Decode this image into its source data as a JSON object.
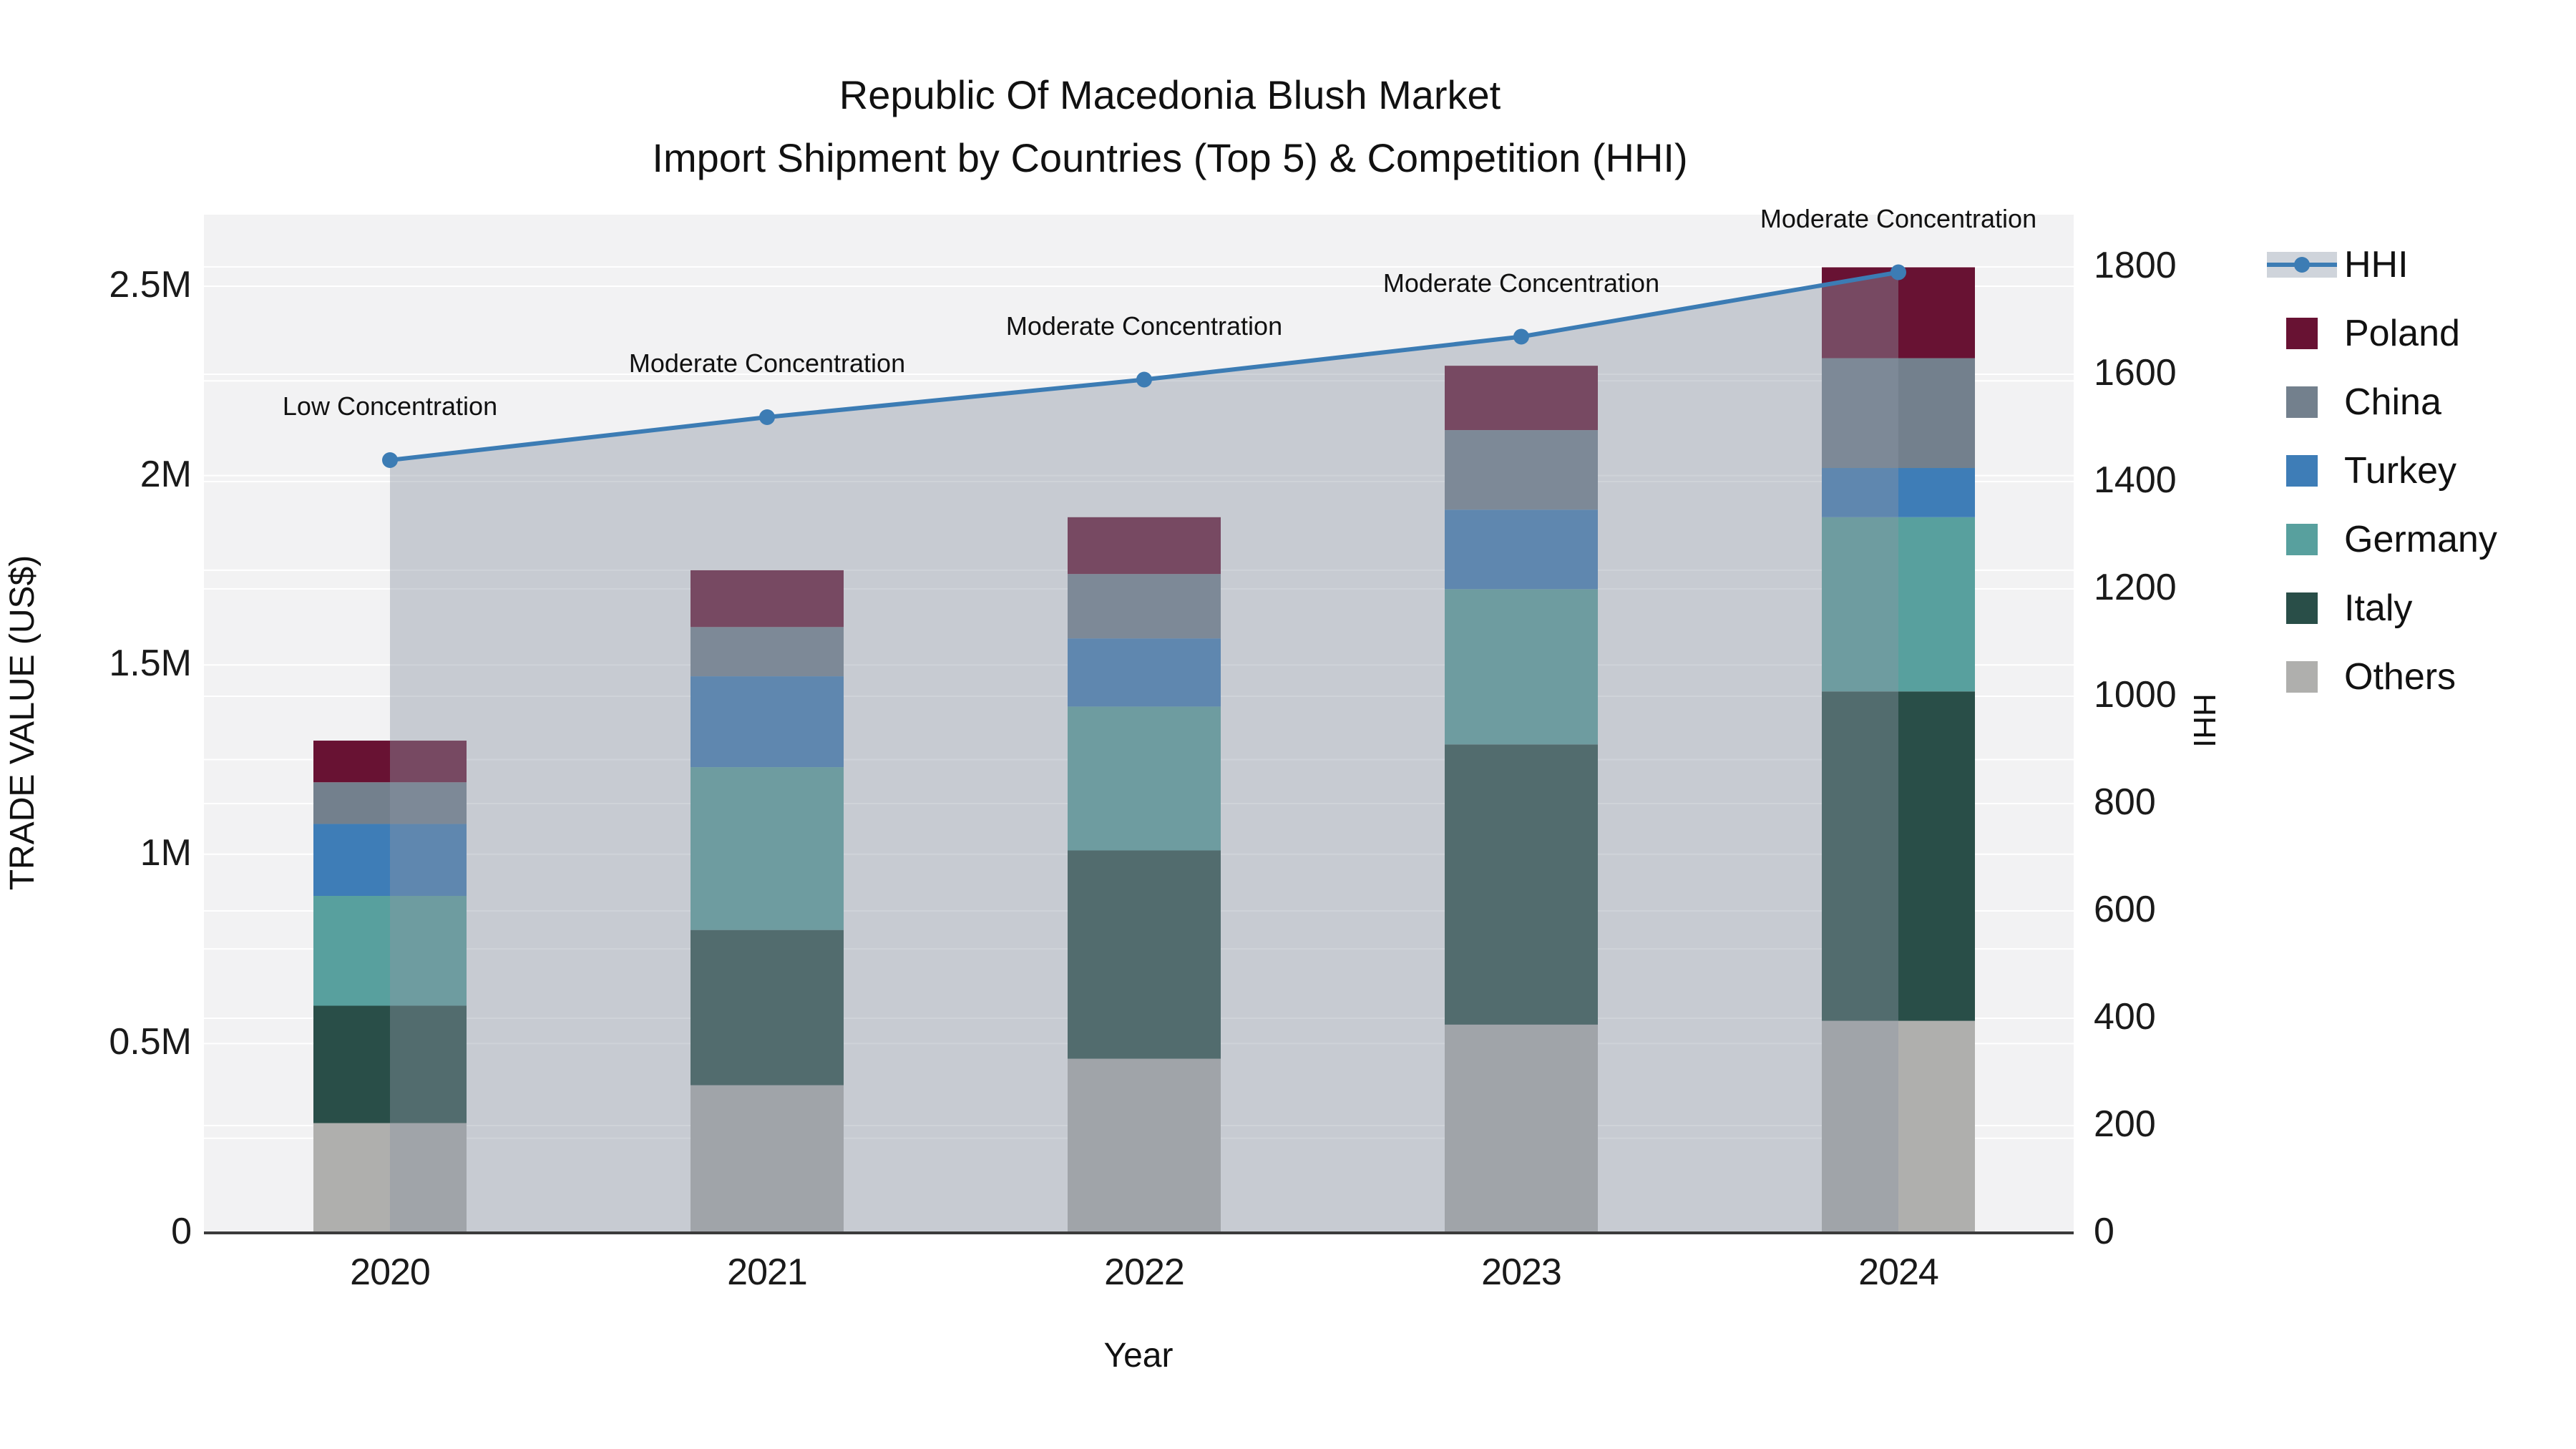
{
  "title": {
    "line1": "Republic Of Macedonia Blush Market",
    "line2": "Import Shipment by Countries (Top 5) & Competition (HHI)"
  },
  "axes": {
    "x": {
      "title": "Year",
      "ticks": [
        "2020",
        "2021",
        "2022",
        "2023",
        "2024"
      ]
    },
    "y_left": {
      "title": "TRADE VALUE (US$)",
      "ticks": [
        "0",
        "0.5M",
        "1M",
        "1.5M",
        "2M",
        "2.5M"
      ],
      "tick_values": [
        0,
        500000,
        1000000,
        1500000,
        2000000,
        2500000
      ],
      "grid_step": 250000,
      "range": [
        0,
        2690000
      ]
    },
    "y_right": {
      "title": "HHI",
      "ticks": [
        "0",
        "200",
        "400",
        "600",
        "800",
        "1000",
        "1200",
        "1400",
        "1600",
        "1800"
      ],
      "tick_values": [
        0,
        200,
        400,
        600,
        800,
        1000,
        1200,
        1400,
        1600,
        1800
      ],
      "grid_step": 200,
      "range": [
        0,
        1898
      ]
    }
  },
  "legend": [
    {
      "label": "HHI",
      "type": "line",
      "color": "#3C7CB4"
    },
    {
      "label": "Poland",
      "type": "swatch",
      "color": "#681233"
    },
    {
      "label": "China",
      "type": "swatch",
      "color": "#73808D"
    },
    {
      "label": "Turkey",
      "type": "swatch",
      "color": "#3E7DB7"
    },
    {
      "label": "Germany",
      "type": "swatch",
      "color": "#58A09E"
    },
    {
      "label": "Italy",
      "type": "swatch",
      "color": "#294E48"
    },
    {
      "label": "Others",
      "type": "swatch",
      "color": "#AFAFAD"
    }
  ],
  "chart_data": {
    "type": "combo: stacked-bar + line",
    "categories": [
      2020,
      2021,
      2022,
      2023,
      2024
    ],
    "stack_order_bottom_to_top": [
      "Others",
      "Italy",
      "Germany",
      "Turkey",
      "China",
      "Poland"
    ],
    "series": [
      {
        "name": "Others",
        "axis": "left",
        "color": "#AFAFAD",
        "values": [
          290000,
          390000,
          460000,
          550000,
          560000
        ]
      },
      {
        "name": "Italy",
        "axis": "left",
        "color": "#294E48",
        "values": [
          310000,
          410000,
          550000,
          740000,
          870000
        ]
      },
      {
        "name": "Germany",
        "axis": "left",
        "color": "#58A09E",
        "values": [
          290000,
          430000,
          380000,
          410000,
          460000
        ]
      },
      {
        "name": "Turkey",
        "axis": "left",
        "color": "#3E7DB7",
        "values": [
          190000,
          240000,
          180000,
          210000,
          130000
        ]
      },
      {
        "name": "China",
        "axis": "left",
        "color": "#73808D",
        "values": [
          110000,
          130000,
          170000,
          210000,
          290000
        ]
      },
      {
        "name": "Poland",
        "axis": "left",
        "color": "#681233",
        "values": [
          110000,
          150000,
          150000,
          170000,
          240000
        ]
      }
    ],
    "bar_totals": [
      1300000,
      1750000,
      1890000,
      2290000,
      2550000
    ],
    "line_series": {
      "name": "HHI",
      "axis": "right",
      "color": "#3C7CB4",
      "area_fill": "rgba(140,150,165,0.42)",
      "values": [
        1440,
        1520,
        1590,
        1670,
        1790
      ]
    },
    "annotations": [
      {
        "year": 2020,
        "text": "Low Concentration"
      },
      {
        "year": 2021,
        "text": "Moderate Concentration"
      },
      {
        "year": 2022,
        "text": "Moderate Concentration"
      },
      {
        "year": 2023,
        "text": "Moderate Concentration"
      },
      {
        "year": 2024,
        "text": "Moderate Concentration"
      }
    ],
    "legend_position": "right",
    "grid": true
  },
  "colors": {
    "plot_background": "#F2F2F3",
    "gridline": "#FFFFFF",
    "axis_line": "#3B3B3B",
    "text": "#1A1A1A",
    "hhi_line": "#3C7CB4",
    "hhi_area": "rgba(140,150,165,0.42)"
  }
}
